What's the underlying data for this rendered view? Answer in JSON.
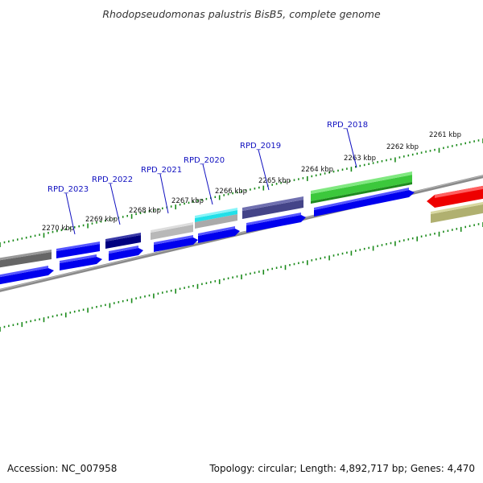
{
  "title": "Rhodopseudomonas palustris BisB5, complete genome",
  "footer": {
    "accession": "Accession: NC_007958",
    "topology": "Topology: circular; Length: 4,892,717 bp; Genes: 4,470"
  },
  "kbp_ticks": [
    "2261 kbp",
    "2262 kbp",
    "2263 kbp",
    "2264 kbp",
    "2265 kbp",
    "2266 kbp",
    "2267 kbp",
    "2268 kbp",
    "2269 kbp",
    "2270 kbp"
  ],
  "gene_labels": [
    "RPD_2018",
    "RPD_2019",
    "RPD_2020",
    "RPD_2021",
    "RPD_2022",
    "RPD_2023"
  ],
  "colors": {
    "forward_strand": "#0000ee",
    "reverse_strand": "#0000ee",
    "tick": "#1a8a1a",
    "backbone": "#808080",
    "label": "#1010c0",
    "gene_green": "#3cc83c",
    "gene_slate": "#444488",
    "gene_cyan": "#22e0e8",
    "gene_navy": "#000080",
    "gene_gray": "#b8b8b8",
    "gene_darkgray": "#666666",
    "gene_red": "#ee0000",
    "gene_olive": "#b0b070"
  }
}
